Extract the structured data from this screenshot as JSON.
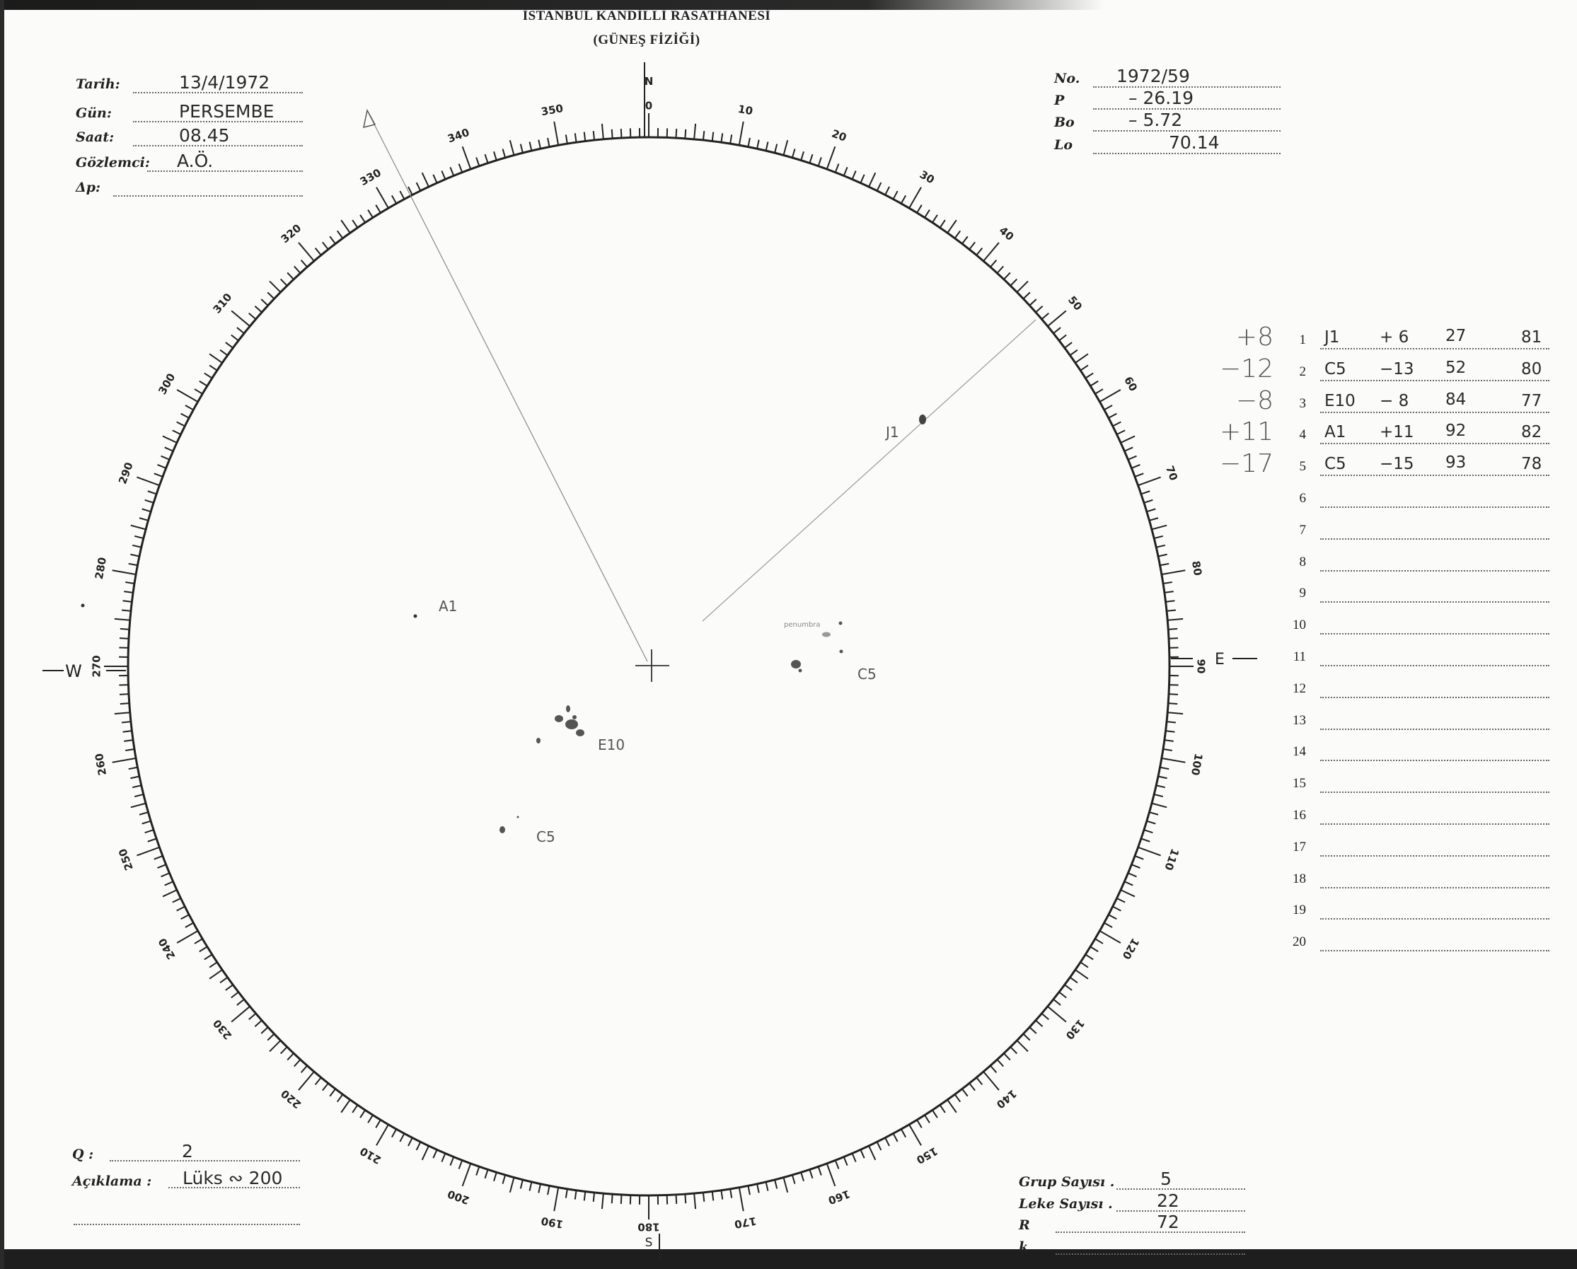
{
  "header": {
    "title": "İSTANBUL KANDİLLİ RASATHANESİ",
    "subtitle": "(GÜNEŞ FİZİĞİ)"
  },
  "observation": [
    {
      "label": "Tarih:",
      "value": "13/4/1972"
    },
    {
      "label": "Gün:",
      "value": "PERSEMBE"
    },
    {
      "label": "Saat:",
      "value": "08.45"
    },
    {
      "label": "Gözlemci:",
      "value": "A.Ö."
    },
    {
      "label": "Δp:",
      "value": ""
    }
  ],
  "ephemeris": [
    {
      "label": "No.",
      "value": "1972/59"
    },
    {
      "label": "P",
      "value": "–   26.19"
    },
    {
      "label": "Bo",
      "value": "–     5.72"
    },
    {
      "label": "Lo",
      "value": "70.14"
    }
  ],
  "groups": [
    {
      "n": "1",
      "correction": "+8",
      "type": "J1",
      "lat": "+ 6",
      "a": "27",
      "b": "81"
    },
    {
      "n": "2",
      "correction": "−12",
      "type": "C5",
      "lat": "−13",
      "a": "52",
      "b": "80"
    },
    {
      "n": "3",
      "correction": "−8",
      "type": "E10",
      "lat": "− 8",
      "a": "84",
      "b": "77"
    },
    {
      "n": "4",
      "correction": "+11",
      "type": "A1",
      "lat": "+11",
      "a": "92",
      "b": "82"
    },
    {
      "n": "5",
      "correction": "−17",
      "type": "C5",
      "lat": "−15",
      "a": "93",
      "b": "78"
    },
    {
      "n": "6"
    },
    {
      "n": "7"
    },
    {
      "n": "8"
    },
    {
      "n": "9"
    },
    {
      "n": "10"
    },
    {
      "n": "11"
    },
    {
      "n": "12"
    },
    {
      "n": "13"
    },
    {
      "n": "14"
    },
    {
      "n": "15"
    },
    {
      "n": "16"
    },
    {
      "n": "17"
    },
    {
      "n": "18"
    },
    {
      "n": "19"
    },
    {
      "n": "20"
    }
  ],
  "footer_left": [
    {
      "label": "Q  :",
      "value": "2"
    },
    {
      "label": "Açıklama  :",
      "value": "Lüks ∾ 200"
    }
  ],
  "footer_right": [
    {
      "label": "Grup Sayısı .",
      "value": "5"
    },
    {
      "label": "Leke Sayısı .",
      "value": "22"
    },
    {
      "label": "R",
      "value": "72"
    },
    {
      "label": "k",
      "value": ""
    }
  ],
  "dial": {
    "labels": [
      "0",
      "10",
      "20",
      "30",
      "40",
      "50",
      "60",
      "70",
      "80",
      "90",
      "100",
      "110",
      "120",
      "130",
      "140",
      "150",
      "160",
      "170",
      "180",
      "190",
      "200",
      "210",
      "220",
      "230",
      "240",
      "250",
      "260",
      "270",
      "280",
      "290",
      "300",
      "310",
      "320",
      "330",
      "340",
      "350"
    ],
    "north": "N",
    "east": "E",
    "south": "S",
    "west": "W"
  },
  "drawing": {
    "spots": [
      {
        "label": "J1"
      },
      {
        "label": "A1"
      },
      {
        "label": "E10"
      },
      {
        "label": "C5"
      },
      {
        "label": "C5"
      }
    ],
    "note": "penumbra"
  }
}
